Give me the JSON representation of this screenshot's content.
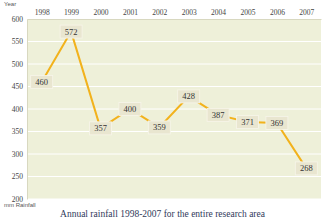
{
  "chart_data": {
    "type": "line",
    "title": "Annual rainfall 1998-2007 for the entire research area",
    "x_label": "Year",
    "y_label": "mm Rainfall",
    "categories": [
      "1998",
      "1999",
      "2000",
      "2001",
      "2002",
      "2003",
      "2004",
      "2005",
      "2006",
      "2007"
    ],
    "values": [
      460,
      572,
      357,
      400,
      359,
      428,
      387,
      371,
      369,
      268
    ],
    "color": "#f2b21c",
    "ylim": [
      200,
      600
    ],
    "yticks": [
      200,
      250,
      300,
      350,
      400,
      450,
      500,
      550,
      600
    ],
    "grid": true,
    "data_labels": true
  }
}
